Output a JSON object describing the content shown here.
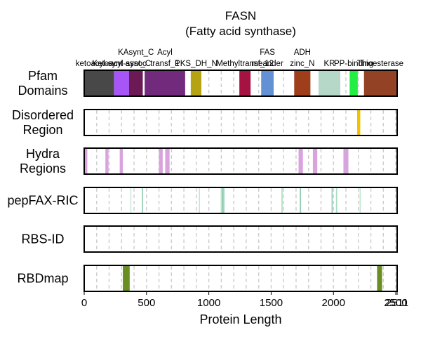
{
  "chart_data": {
    "type": "track",
    "title": "FASN",
    "subtitle": "(Fatty acid synthase)",
    "xlabel": "Protein Length",
    "xlim": [
      0,
      2511
    ],
    "xticks": [
      0,
      500,
      1000,
      1500,
      2000,
      2500
    ],
    "xtick_labels": [
      "0",
      "500",
      "1000",
      "1500",
      "2000",
      "2500"
    ],
    "protein_length": 2511,
    "protein_length_label": "2511",
    "grid": "dashed vertical lines every 100 residues",
    "tracks": [
      {
        "key": "pfam",
        "label_lines": [
          "Pfam",
          "Domains"
        ],
        "features": [
          {
            "start": 0,
            "end": 240,
            "color": "#484848",
            "label_lines": [
              "ketoacyl-synt"
            ]
          },
          {
            "start": 240,
            "end": 360,
            "color": "#a855f7",
            "label_lines": [
              "Ketoacyl-synt_C"
            ]
          },
          {
            "start": 360,
            "end": 470,
            "color": "#6b1a55",
            "label_lines": [
              "KAsynt_C",
              "assoc"
            ]
          },
          {
            "start": 485,
            "end": 810,
            "color": "#722a7d",
            "label_lines": [
              "Acyl",
              "transf_1"
            ]
          },
          {
            "start": 855,
            "end": 940,
            "color": "#b5a313",
            "label_lines": [
              "PKS_DH_N"
            ]
          },
          {
            "start": 1245,
            "end": 1335,
            "color": "#a61242",
            "label_lines": [
              "Methyltransf_12"
            ]
          },
          {
            "start": 1420,
            "end": 1520,
            "color": "#6490d4",
            "label_lines": [
              "FAS",
              "meander"
            ]
          },
          {
            "start": 1685,
            "end": 1815,
            "color": "#9e3e1b",
            "label_lines": [
              "ADH",
              "zinc_N"
            ]
          },
          {
            "start": 1880,
            "end": 2055,
            "color": "#b6d8c9",
            "label_lines": [
              "KR"
            ]
          },
          {
            "start": 2130,
            "end": 2195,
            "color": "#22ee44",
            "label_lines": [
              "PP-binding"
            ]
          },
          {
            "start": 2245,
            "end": 2505,
            "color": "#934226",
            "label_lines": [
              "Thioesterase"
            ]
          }
        ]
      },
      {
        "key": "disordered",
        "label_lines": [
          "Disordered",
          "Region"
        ],
        "features": [
          {
            "start": 2190,
            "end": 2215,
            "color": "#f0c200"
          }
        ]
      },
      {
        "key": "hydra",
        "label_lines": [
          "Hydra",
          "Regions"
        ],
        "features": [
          {
            "start": 0,
            "end": 25,
            "color": "#d9a3de"
          },
          {
            "start": 170,
            "end": 195,
            "color": "#d9a3de"
          },
          {
            "start": 285,
            "end": 310,
            "color": "#d9a3de"
          },
          {
            "start": 600,
            "end": 630,
            "color": "#d9a3de"
          },
          {
            "start": 650,
            "end": 685,
            "color": "#d9a3de"
          },
          {
            "start": 1720,
            "end": 1755,
            "color": "#d9a3de"
          },
          {
            "start": 1835,
            "end": 1870,
            "color": "#d9a3de"
          },
          {
            "start": 2080,
            "end": 2120,
            "color": "#d9a3de"
          }
        ]
      },
      {
        "key": "pepfax",
        "label_lines": [
          "pepFAX-RIC"
        ],
        "features": [
          {
            "start": 370,
            "end": 378,
            "color": "#c9e8d8"
          },
          {
            "start": 463,
            "end": 472,
            "color": "#8fcbb0"
          },
          {
            "start": 920,
            "end": 928,
            "color": "#bfe6c9"
          },
          {
            "start": 1095,
            "end": 1105,
            "color": "#bfe6c9"
          },
          {
            "start": 1105,
            "end": 1118,
            "color": "#8fcbb0"
          },
          {
            "start": 1118,
            "end": 1126,
            "color": "#a8dcc5"
          },
          {
            "start": 1583,
            "end": 1592,
            "color": "#a8dcb8"
          },
          {
            "start": 1730,
            "end": 1740,
            "color": "#8fcbb0"
          },
          {
            "start": 1985,
            "end": 1993,
            "color": "#8fcbb0"
          },
          {
            "start": 2020,
            "end": 2030,
            "color": "#a8dcc5"
          },
          {
            "start": 2210,
            "end": 2218,
            "color": "#bfe6c9"
          }
        ]
      },
      {
        "key": "rbsid",
        "label_lines": [
          "RBS-ID"
        ],
        "features": []
      },
      {
        "key": "rbdmap",
        "label_lines": [
          "RBDmap"
        ],
        "features": [
          {
            "start": 310,
            "end": 365,
            "color": "#6b8e23"
          },
          {
            "start": 2350,
            "end": 2390,
            "color": "#6b8e23"
          }
        ]
      }
    ]
  }
}
